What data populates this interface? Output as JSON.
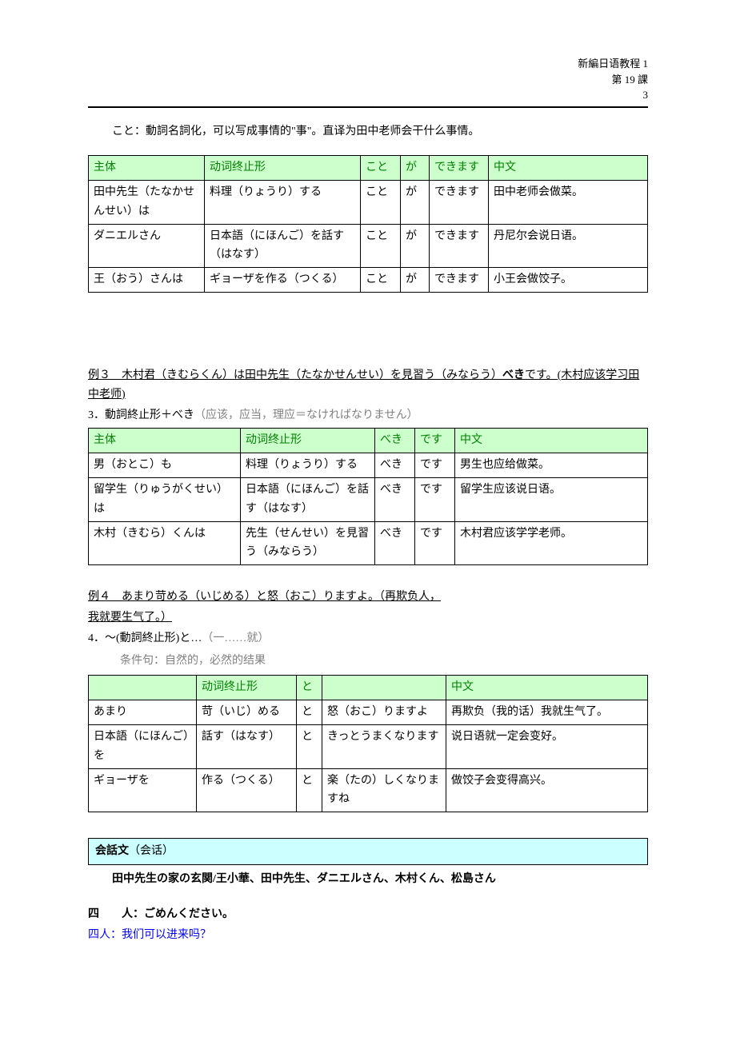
{
  "header": {
    "line1": "新編日语教程 1",
    "line2": "第 19 課",
    "line3": "3"
  },
  "koto_explain": "こと：動詞名詞化，可以写成事情的\"事\"。直译为田中老师会干什么事情。",
  "table1": {
    "header_bg": "#ccffcc",
    "header_color": "#008000",
    "columns": [
      "主体",
      "动词终止形",
      "こと",
      "が",
      "できます",
      "中文"
    ],
    "rows": [
      [
        "田中先生（たなかせんせい）は",
        "料理（りょうり）する",
        "こと",
        "が",
        "できます",
        "田中老师会做菜。"
      ],
      [
        "ダニエルさん",
        "日本語（にほんご）を話す（はなす）",
        "こと",
        "が",
        "できます",
        "丹尼尔会说日语。"
      ],
      [
        "王（おう）さんは",
        "ギョーザを作る（つくる）",
        "こと",
        "が",
        "できます",
        "小王会做饺子。"
      ]
    ],
    "col_widths": [
      "145px",
      "195px",
      "50px",
      "36px",
      "74px",
      "auto"
    ]
  },
  "example3": {
    "title_pre": "例３　木村君（きむらくん）は田中先生（たなかせんせい）を見習う（みならう）",
    "title_bold": "べき",
    "title_post": "です。",
    "title_paren": "(木村应该学习田中老师)"
  },
  "grammar3": {
    "num": "3．",
    "text": "動詞終止形＋べき",
    "note": "（应该，应当，理应＝なければなりません）"
  },
  "table2": {
    "header_bg": "#ccffcc",
    "header_color": "#008000",
    "columns": [
      "主体",
      "动词终止形",
      "べき",
      "です",
      "中文"
    ],
    "rows": [
      [
        "男（おとこ）も",
        "料理（りょうり）する",
        "べき",
        "です",
        "男生也应给做菜。"
      ],
      [
        "留学生（りゅうがくせい）は",
        "日本語（にほんご）を話す（はなす）",
        "べき",
        "です",
        "留学生应该说日语。"
      ],
      [
        "木村（きむら）くんは",
        "先生（せんせい）を見習う（みならう）",
        "べき",
        "です",
        "木村君应该学学老师。"
      ]
    ],
    "col_widths": [
      "190px",
      "168px",
      "50px",
      "50px",
      "auto"
    ]
  },
  "example4": {
    "title": "例４　あまり苛める（いじめる）と怒（おこ）りますよ。",
    "paren": "（再欺负人，",
    "cont": "我就要生气了。）"
  },
  "grammar4": {
    "num": "4．",
    "text": "～(動詞終止形)と…",
    "note": "（一……就）"
  },
  "cond_note": "条件句：自然的，必然的结果",
  "table3": {
    "header_bg": "#ccffcc",
    "header_color": "#008000",
    "columns": [
      "",
      "动词终止形",
      "と",
      "",
      "中文"
    ],
    "rows": [
      [
        "あまり",
        "苛（いじ）める",
        "と",
        "怒（おこ）りますよ",
        "再欺负（我的话）我就生气了。"
      ],
      [
        "日本語（にほんご）を",
        "話す（はなす）",
        "と",
        "きっとうまくなります",
        "说日语就一定会变好。"
      ],
      [
        "ギョーザを",
        "作る（つくる）",
        "と",
        "楽（たの）しくなりますね",
        "做饺子会变得高兴。"
      ]
    ],
    "col_widths": [
      "135px",
      "125px",
      "32px",
      "155px",
      "auto"
    ]
  },
  "section": {
    "title": "会話文",
    "paren": "（会话）"
  },
  "setting": "田中先生の家の玄関/王小華、田中先生、ダニエルさん、木村くん、松島さん",
  "dialogue": {
    "speaker": "四　　人：",
    "text": "ごめんください。",
    "trans_speaker": "四人：",
    "trans_text": "我们可以进来吗？"
  }
}
